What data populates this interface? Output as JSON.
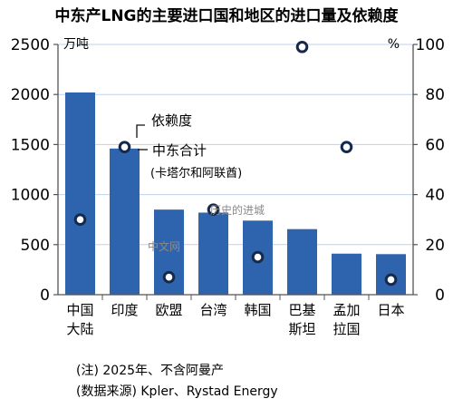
{
  "chart_data": {
    "type": "bar",
    "title": "中东产LNG的主要进口国和地区的进口量及依赖度",
    "categories": [
      [
        "中国",
        "大陆"
      ],
      [
        "印度"
      ],
      [
        "欧盟"
      ],
      [
        "台湾"
      ],
      [
        "韩国"
      ],
      [
        "巴基",
        "斯坦"
      ],
      [
        "孟加",
        "拉国"
      ],
      [
        "日本"
      ]
    ],
    "series": [
      {
        "name": "中东合计",
        "subname": "(卡塔尔和阿联酋)",
        "axis": "left",
        "values": [
          2020,
          1460,
          850,
          820,
          740,
          655,
          410,
          405
        ]
      },
      {
        "name": "依赖度",
        "axis": "right",
        "values": [
          30,
          59,
          7,
          34,
          15,
          99,
          59,
          6
        ]
      }
    ],
    "left_axis": {
      "unit": "万吨",
      "ylim": [
        0,
        2500
      ],
      "ticks": [
        "0",
        "500",
        "1000",
        "1500",
        "2000",
        "2500"
      ]
    },
    "right_axis": {
      "unit": "%",
      "ylim": [
        0,
        100
      ],
      "ticks": [
        "0",
        "20",
        "40",
        "60",
        "80",
        "100"
      ]
    },
    "colors": {
      "bar": "#2e64ad",
      "marker_fill": "#ffffff",
      "marker_stroke": "#15294c",
      "grid": "#bfd2ea",
      "tick_stroke": "#555555"
    },
    "grid": true,
    "legend_position": "upper-left, inside plot"
  },
  "notes": {
    "line1": "(注) 2025年、不含阿曼产",
    "line2": "(数据来源) Kpler、Rystad Energy"
  },
  "watermarks": {
    "w1": "历史的进城",
    "w2": "中文网"
  }
}
